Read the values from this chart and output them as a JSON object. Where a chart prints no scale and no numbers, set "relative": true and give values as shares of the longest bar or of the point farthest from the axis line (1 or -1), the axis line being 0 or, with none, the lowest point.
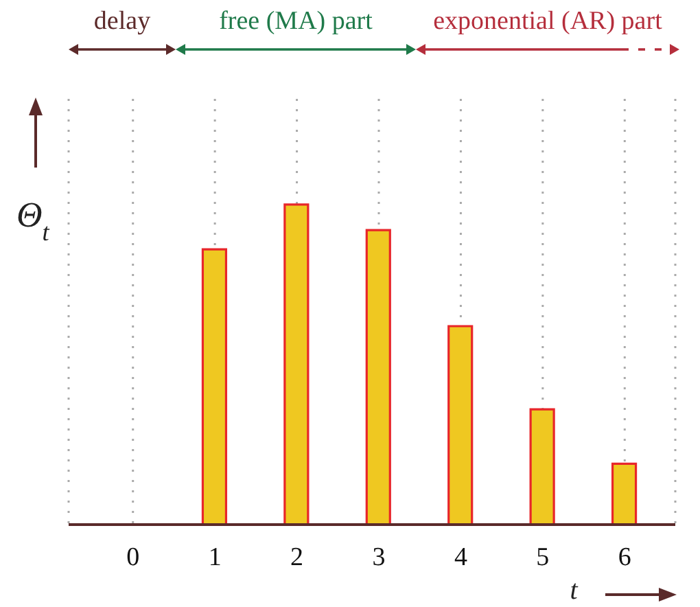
{
  "chart_data": {
    "type": "bar",
    "relative": true,
    "categories": [
      "0",
      "1",
      "2",
      "3",
      "4",
      "5",
      "6"
    ],
    "values": [
      null,
      0.86,
      1,
      0.92,
      0.62,
      0.36,
      0.19
    ],
    "color": "#efc821",
    "xlabel": "t",
    "ylabel": "Θ$_{t}$",
    "annotations": [
      "delay",
      "free (MA) part",
      "exponential (AR) part"
    ],
    "grid": "x",
    "legend": false
  }
}
